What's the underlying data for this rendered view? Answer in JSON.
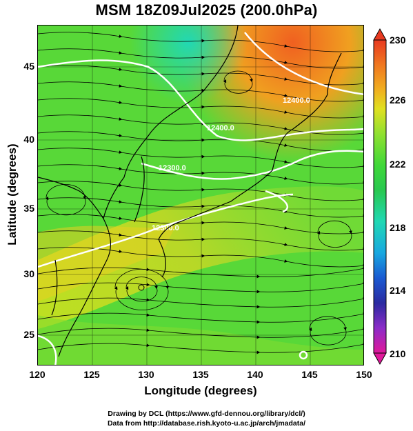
{
  "title": "MSM 18Z09Jul2025 (200.0hPa)",
  "xlabel": "Longitude (degrees)",
  "ylabel": "Latitude  (degrees)",
  "x_ticks": [
    "120",
    "125",
    "130",
    "135",
    "140",
    "145",
    "150"
  ],
  "y_ticks": [
    "25",
    "30",
    "35",
    "40",
    "45"
  ],
  "colorbar": {
    "ticks": [
      "230",
      "226",
      "222",
      "218",
      "214",
      "210"
    ],
    "range": [
      210,
      230
    ],
    "colors": [
      "#e0189a",
      "#8c2cc8",
      "#2a2aa0",
      "#1a5ad2",
      "#18a8e0",
      "#20d8b4",
      "#28c850",
      "#40d838",
      "#90e030",
      "#e0e020",
      "#f0b020",
      "#f07820",
      "#e83a20"
    ]
  },
  "contour_labels": [
    "12400.0",
    "12400.0",
    "12300.0",
    "12300.0"
  ],
  "footer": {
    "line1": "Drawing by DCL (https://www.gfd-dennou.org/library/dcl/)",
    "line2": "Data from http://database.rish.kyoto-u.ac.jp/arch/jmadata/"
  },
  "chart_data": {
    "type": "heatmap",
    "title": "MSM 18Z09Jul2025 (200.0hPa)",
    "xlabel": "Longitude (degrees)",
    "ylabel": "Latitude  (degrees)",
    "xlim": [
      120,
      150
    ],
    "ylim": [
      22.4,
      47.6
    ],
    "colorbar_range": [
      210,
      230
    ],
    "colorbar_ticks": [
      230,
      226,
      222,
      218,
      214,
      210
    ],
    "grid": true,
    "overlays": [
      "streamlines",
      "geopotential height contours",
      "coastlines"
    ]
  }
}
